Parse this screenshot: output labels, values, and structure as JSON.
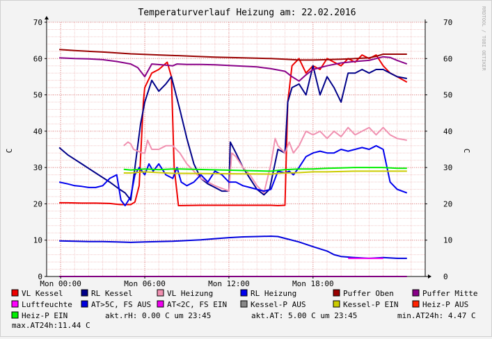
{
  "chart_data": {
    "type": "line",
    "title": "Temperaturverlauf Heizung am: 22.02.2016",
    "ylabel_left": "C",
    "ylabel_right": "C",
    "watermark": "RRDTOOL / TOBI OETIKER",
    "ylim": [
      0,
      70
    ],
    "y_ticks": [
      0,
      10,
      20,
      30,
      40,
      50,
      60,
      70
    ],
    "xlim_hours": [
      -1.0,
      26.0
    ],
    "x_ticks": [
      {
        "hour": 0,
        "label": "Mon 00:00"
      },
      {
        "hour": 6,
        "label": "Mon 06:00"
      },
      {
        "hour": 12,
        "label": "Mon 12:00"
      },
      {
        "hour": 18,
        "label": "Mon 18:00"
      }
    ],
    "grid": true,
    "legend_placement": "bottom",
    "series": [
      {
        "name": "VL Kessel",
        "color": "#ee0000",
        "x": [
          -0.1,
          0.5,
          1.5,
          2.5,
          3.5,
          4.0,
          4.3,
          4.6,
          5.0,
          5.3,
          5.6,
          5.9,
          6.0,
          6.5,
          7.0,
          7.3,
          7.6,
          7.9,
          8.1,
          8.4,
          10.0,
          11.0,
          12.0,
          12.7,
          13.5,
          14.0,
          14.3,
          15.0,
          15.5,
          16.0,
          16.2,
          16.5,
          17.0,
          17.5,
          18.0,
          18.5,
          19.0,
          19.5,
          20.0,
          20.5,
          21.0,
          21.5,
          22.0,
          22.5,
          23.0,
          23.5,
          24.0,
          24.7
        ],
        "y": [
          20.3,
          20.3,
          20.2,
          20.2,
          20.1,
          19.9,
          19.8,
          19.8,
          19.8,
          20.5,
          25.0,
          48.0,
          52.0,
          56.0,
          57.0,
          58.0,
          59.0,
          55.0,
          30.0,
          19.5,
          19.6,
          19.6,
          19.6,
          19.6,
          19.6,
          19.6,
          19.6,
          19.6,
          19.5,
          19.6,
          48.0,
          58.0,
          60.0,
          56.0,
          58.0,
          57.0,
          60.0,
          59.0,
          58.0,
          60.0,
          59.0,
          61.0,
          60.0,
          61.0,
          58.0,
          56.0,
          55.0,
          53.5
        ]
      },
      {
        "name": "RL Kessel",
        "color": "#000088",
        "x": [
          -0.1,
          0.5,
          1.5,
          2.5,
          3.5,
          4.2,
          4.6,
          5.0,
          5.3,
          5.7,
          6.0,
          6.5,
          7.0,
          7.5,
          7.9,
          8.5,
          9.0,
          9.5,
          10.0,
          10.5,
          11.0,
          11.5,
          12.0,
          12.1,
          12.5,
          13.0,
          13.5,
          14.0,
          14.5,
          14.9,
          15.5,
          16.0,
          16.2,
          16.5,
          17.0,
          17.5,
          18.0,
          18.5,
          19.0,
          19.5,
          20.0,
          20.5,
          21.0,
          21.5,
          22.0,
          22.5,
          23.0,
          23.5,
          24.0,
          24.7
        ],
        "y": [
          35.5,
          33.5,
          31.0,
          28.5,
          26.0,
          24.0,
          23.0,
          21.0,
          30.0,
          42.0,
          48.0,
          54.0,
          51.0,
          53.0,
          55.0,
          46.0,
          38.0,
          31.0,
          27.0,
          25.5,
          24.5,
          23.5,
          23.5,
          37.0,
          34.0,
          30.0,
          27.0,
          24.0,
          22.5,
          24.0,
          35.0,
          34.0,
          48.0,
          52.0,
          53.0,
          50.0,
          58.0,
          50.0,
          55.0,
          52.0,
          48.0,
          56.0,
          56.0,
          57.0,
          56.0,
          57.0,
          57.0,
          56.0,
          55.0,
          54.5
        ]
      },
      {
        "name": "VL Heizung",
        "color": "#f090b0",
        "x": [
          4.5,
          4.8,
          5.0,
          5.2,
          5.5,
          5.8,
          6.0,
          6.2,
          6.5,
          7.0,
          7.5,
          8.0,
          8.5,
          9.0,
          10.0,
          11.0,
          12.0,
          12.2,
          12.5,
          13.0,
          13.5,
          14.0,
          14.5,
          15.0,
          15.3,
          15.5,
          16.0,
          16.3,
          16.6,
          17.0,
          17.5,
          18.0,
          18.5,
          19.0,
          19.5,
          20.0,
          20.5,
          21.0,
          21.5,
          22.0,
          22.5,
          23.0,
          23.5,
          24.0,
          24.7
        ],
        "y": [
          36.0,
          37.0,
          36.5,
          35.0,
          34.5,
          34.0,
          34.0,
          37.5,
          35.0,
          35.0,
          36.0,
          36.0,
          34.0,
          31.0,
          27.0,
          25.0,
          23.5,
          34.0,
          33.0,
          30.0,
          28.0,
          25.0,
          23.0,
          31.0,
          38.0,
          36.0,
          34.0,
          37.0,
          34.0,
          36.0,
          40.0,
          39.0,
          40.0,
          38.0,
          40.0,
          38.5,
          41.0,
          39.0,
          40.0,
          41.0,
          39.0,
          41.0,
          39.0,
          38.0,
          37.5
        ]
      },
      {
        "name": "RL Heizung",
        "color": "#0000ee",
        "x": [
          -0.1,
          0.5,
          1.0,
          1.5,
          2.0,
          2.5,
          3.0,
          3.5,
          4.0,
          4.3,
          4.6,
          5.0,
          5.3,
          5.6,
          6.0,
          6.3,
          6.6,
          7.0,
          7.5,
          8.0,
          8.3,
          8.6,
          9.0,
          9.5,
          10.0,
          10.5,
          11.0,
          11.5,
          12.0,
          12.5,
          13.0,
          13.5,
          14.0,
          14.5,
          15.0,
          15.5,
          16.0,
          16.3,
          16.6,
          17.0,
          17.5,
          18.0,
          18.5,
          19.0,
          19.5,
          20.0,
          20.5,
          21.0,
          21.5,
          22.0,
          22.5,
          23.0,
          23.5,
          24.0,
          24.7
        ],
        "y": [
          26.0,
          25.5,
          25.0,
          24.8,
          24.5,
          24.5,
          25.0,
          27.0,
          28.0,
          21.0,
          19.5,
          22.0,
          28.0,
          30.0,
          28.0,
          31.0,
          29.0,
          31.0,
          28.0,
          27.0,
          30.0,
          26.0,
          25.0,
          26.0,
          28.0,
          26.0,
          29.0,
          28.0,
          26.0,
          26.0,
          25.0,
          24.5,
          24.0,
          23.5,
          24.0,
          29.0,
          28.5,
          29.0,
          28.0,
          30.0,
          33.0,
          34.0,
          34.5,
          34.0,
          34.0,
          35.0,
          34.5,
          35.0,
          35.5,
          35.0,
          36.0,
          35.0,
          26.0,
          24.0,
          23.0
        ]
      },
      {
        "name": "Puffer Oben",
        "color": "#990000",
        "x": [
          -0.1,
          1.0,
          3.0,
          5.0,
          7.0,
          9.0,
          11.0,
          13.0,
          15.0,
          16.0,
          17.0,
          18.0,
          19.0,
          20.0,
          21.0,
          22.0,
          22.5,
          23.0,
          24.0,
          24.7
        ],
        "y": [
          62.5,
          62.2,
          61.8,
          61.3,
          61.0,
          60.7,
          60.4,
          60.2,
          60.0,
          59.8,
          59.6,
          59.6,
          59.7,
          59.8,
          60.0,
          60.2,
          60.6,
          61.2,
          61.2,
          61.2
        ]
      },
      {
        "name": "Puffer Mitte",
        "color": "#880088",
        "x": [
          -0.1,
          1.0,
          2.0,
          3.0,
          4.0,
          5.0,
          5.5,
          6.0,
          6.5,
          7.5,
          8.0,
          8.3,
          9.0,
          10.0,
          11.0,
          12.0,
          13.0,
          14.0,
          15.0,
          16.0,
          16.5,
          17.0,
          17.5,
          18.0,
          19.0,
          20.0,
          21.0,
          22.0,
          22.5,
          23.0,
          23.5,
          24.0,
          24.7
        ],
        "y": [
          60.2,
          60.0,
          59.9,
          59.7,
          59.2,
          58.5,
          57.5,
          55.0,
          58.5,
          58.2,
          58.0,
          58.5,
          58.4,
          58.4,
          58.3,
          58.1,
          57.9,
          57.7,
          57.2,
          56.5,
          55.0,
          53.8,
          55.5,
          57.0,
          58.0,
          58.8,
          59.2,
          59.5,
          60.0,
          60.5,
          60.3,
          59.5,
          58.5
        ]
      },
      {
        "name": "Luftfeuchte",
        "color": "#ff00ff",
        "x": [
          -0.1,
          24.7
        ],
        "y": [
          0,
          0
        ]
      },
      {
        "name": "AT>5C, FS AUS",
        "color": "#0000dd",
        "x": [
          -0.1,
          1.0,
          2.0,
          3.0,
          4.0,
          5.0,
          6.0,
          7.0,
          8.0,
          9.0,
          10.0,
          11.0,
          12.0,
          13.0,
          14.0,
          15.0,
          15.5,
          16.0,
          17.0,
          18.0,
          19.0,
          19.5,
          20.0,
          21.0,
          22.0,
          23.0,
          24.0,
          24.7
        ],
        "y": [
          9.8,
          9.7,
          9.6,
          9.6,
          9.5,
          9.4,
          9.5,
          9.6,
          9.7,
          9.9,
          10.1,
          10.4,
          10.7,
          10.9,
          11.0,
          11.1,
          11.0,
          10.5,
          9.5,
          8.2,
          7.0,
          6.0,
          5.5,
          5.2,
          5.0,
          5.2,
          5.0,
          5.0
        ]
      },
      {
        "name": "AT<2C, FS EIN",
        "color": "#ee00ee",
        "x": [
          20.5,
          21.8,
          22.2,
          23.0
        ],
        "y": [
          5.0,
          5.0,
          5.0,
          5.0
        ]
      },
      {
        "name": "Kessel-P AUS",
        "color": "#888888",
        "x": [],
        "y": []
      },
      {
        "name": "Kessel-P EIN",
        "color": "#cccc00",
        "x": [
          4.5,
          5.0,
          6.0,
          7.0,
          8.0,
          8.5,
          15.0,
          15.5,
          16.0,
          17.0,
          18.0,
          19.0,
          20.0,
          21.0,
          22.0,
          23.0,
          24.0,
          24.7
        ],
        "y": [
          28.5,
          28.5,
          28.8,
          28.6,
          28.4,
          28.4,
          28.2,
          28.4,
          28.5,
          28.6,
          28.8,
          28.8,
          28.9,
          29.0,
          29.0,
          29.0,
          29.0,
          29.0
        ]
      },
      {
        "name": "Heiz-P AUS",
        "color": "#ff2200",
        "x": [],
        "y": []
      },
      {
        "name": "Heiz-P EIN",
        "color": "#00ee00",
        "x": [
          4.5,
          5.0,
          6.0,
          7.0,
          8.0,
          8.5,
          15.0,
          15.5,
          16.0,
          17.0,
          18.0,
          19.0,
          20.0,
          21.0,
          22.0,
          23.0,
          24.0,
          24.7
        ],
        "y": [
          29.5,
          29.3,
          29.6,
          29.4,
          29.6,
          29.6,
          29.0,
          29.2,
          29.4,
          29.6,
          29.6,
          29.8,
          29.9,
          30.0,
          30.0,
          30.0,
          29.8,
          29.8
        ]
      }
    ]
  },
  "legend": [
    {
      "name": "VL Kessel",
      "color": "#ee0000"
    },
    {
      "name": "RL Kessel",
      "color": "#000088"
    },
    {
      "name": "VL Heizung",
      "color": "#f090b0"
    },
    {
      "name": "RL Heizung",
      "color": "#0000ee"
    },
    {
      "name": "Puffer Oben",
      "color": "#990000"
    },
    {
      "name": "Puffer Mitte",
      "color": "#880088"
    },
    {
      "name": "Luftfeuchte",
      "color": "#ff00ff"
    },
    {
      "name": "AT>5C, FS AUS",
      "color": "#0000dd"
    },
    {
      "name": "AT<2C, FS EIN",
      "color": "#ee00ee"
    },
    {
      "name": "Kessel-P AUS",
      "color": "#888888"
    },
    {
      "name": "Kessel-P EIN",
      "color": "#cccc00"
    },
    {
      "name": "Heiz-P AUS",
      "color": "#ff2200"
    },
    {
      "name": "Heiz-P EIN",
      "color": "#00ee00"
    }
  ],
  "status": {
    "akt_rh": "akt.rH: 0.00 C um 23:45",
    "akt_at": "akt.AT: 5.00 C um 23:45",
    "min_at": "min.AT24h: 4.47 C",
    "max_at": "max.AT24h:11.44 C"
  }
}
